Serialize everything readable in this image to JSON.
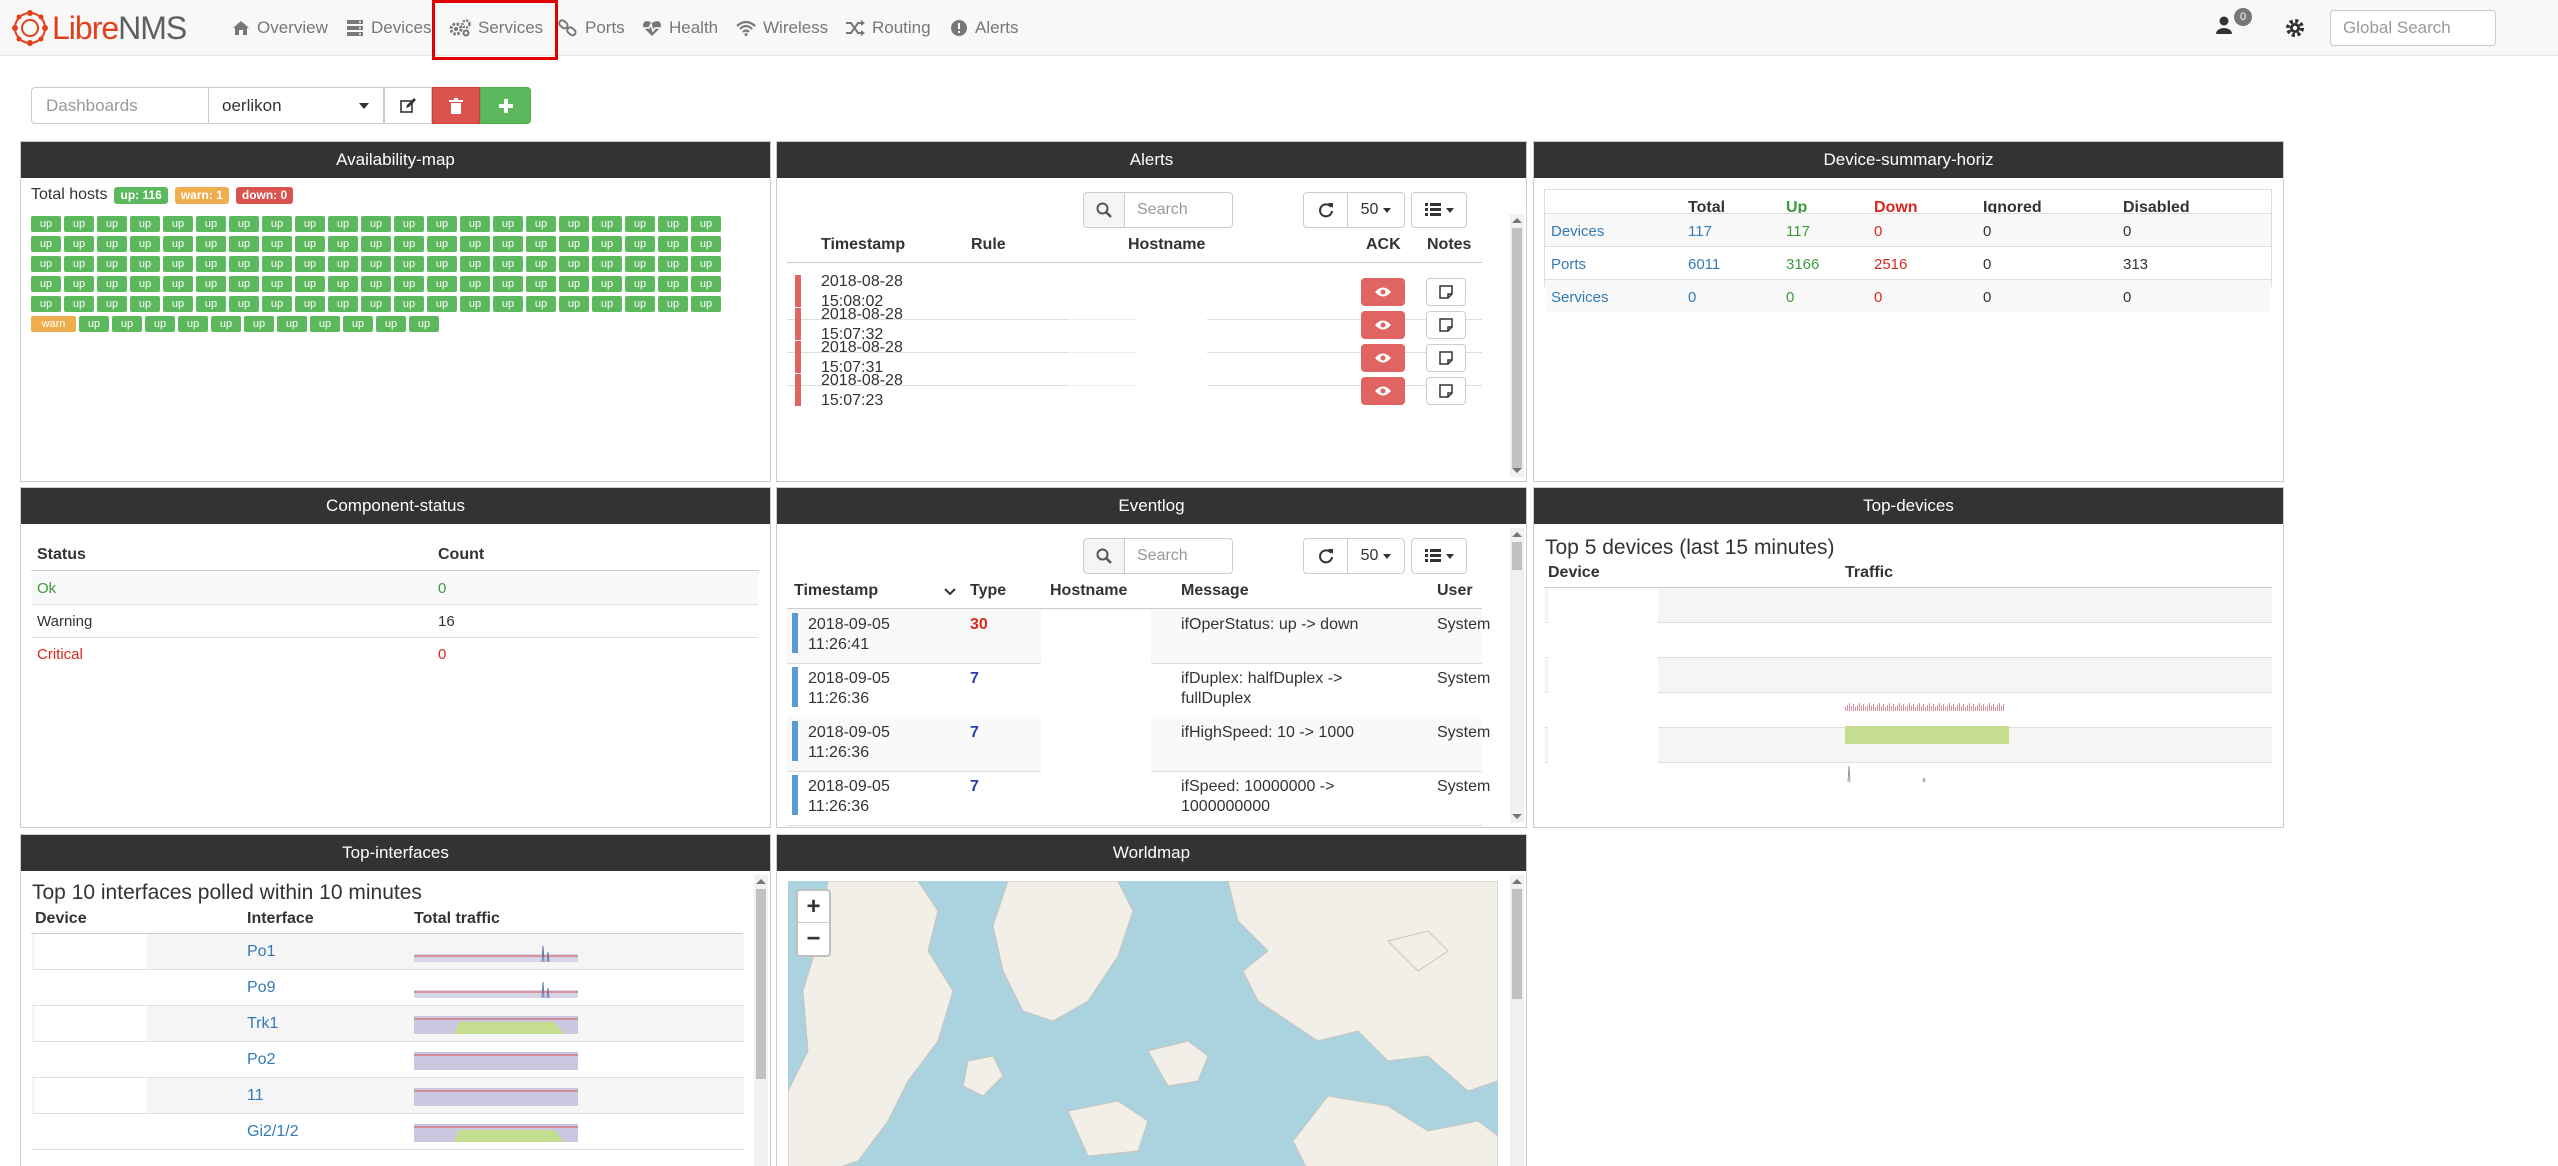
{
  "brand": {
    "libre": "Libre",
    "nms": "NMS"
  },
  "nav": {
    "overview": "Overview",
    "devices": "Devices",
    "services": "Services",
    "ports": "Ports",
    "health": "Health",
    "wireless": "Wireless",
    "routing": "Routing",
    "alerts": "Alerts",
    "notifications_count": "0",
    "search_placeholder": "Global Search"
  },
  "dashboard": {
    "label": "Dashboards",
    "selected": "oerlikon"
  },
  "availability": {
    "title": "Availability-map",
    "total_label": "Total hosts",
    "up_badge": "up: 116",
    "warn_badge": "warn: 1",
    "down_badge": "down: 0",
    "tile_up": "up",
    "tile_warn": "warn",
    "up_count": 116,
    "warn_count": 1
  },
  "alerts": {
    "title": "Alerts",
    "search_placeholder": "Search",
    "page_size": "50",
    "headers": [
      "Timestamp",
      "Rule",
      "Hostname",
      "ACK",
      "Notes"
    ],
    "rows": [
      {
        "date": "2018-08-28",
        "time": "15:08:02"
      },
      {
        "date": "2018-08-28",
        "time": "15:07:32"
      },
      {
        "date": "2018-08-28",
        "time": "15:07:31"
      },
      {
        "date": "2018-08-28",
        "time": "15:07:23"
      }
    ]
  },
  "device_summary": {
    "title": "Device-summary-horiz",
    "headers": [
      "Total",
      "Up",
      "Down",
      "Ignored",
      "Disabled"
    ],
    "rows": [
      {
        "label": "Devices",
        "total": "117",
        "up": "117",
        "down": "0",
        "ignored": "0",
        "disabled": "0"
      },
      {
        "label": "Ports",
        "total": "6011",
        "up": "3166",
        "down": "2516",
        "ignored": "0",
        "disabled": "313"
      },
      {
        "label": "Services",
        "total": "0",
        "up": "0",
        "down": "0",
        "ignored": "0",
        "disabled": "0"
      }
    ]
  },
  "component_status": {
    "title": "Component-status",
    "headers": [
      "Status",
      "Count"
    ],
    "rows": [
      {
        "status": "Ok",
        "count": "0"
      },
      {
        "status": "Warning",
        "count": "16"
      },
      {
        "status": "Critical",
        "count": "0"
      }
    ]
  },
  "eventlog": {
    "title": "Eventlog",
    "search_placeholder": "Search",
    "page_size": "50",
    "headers": [
      "Timestamp",
      "Type",
      "Hostname",
      "Message",
      "User"
    ],
    "rows": [
      {
        "date": "2018-09-05",
        "time": "11:26:41",
        "type": "30",
        "msg1": "ifOperStatus: up -> down",
        "msg2": "",
        "user": "System"
      },
      {
        "date": "2018-09-05",
        "time": "11:26:36",
        "type": "7",
        "msg1": "ifDuplex: halfDuplex ->",
        "msg2": "fullDuplex",
        "user": "System"
      },
      {
        "date": "2018-09-05",
        "time": "11:26:36",
        "type": "7",
        "msg1": "ifHighSpeed: 10 -> 1000",
        "msg2": "",
        "user": "System"
      },
      {
        "date": "2018-09-05",
        "time": "11:26:36",
        "type": "7",
        "msg1": "ifSpeed: 10000000 ->",
        "msg2": "1000000000",
        "user": "System"
      }
    ]
  },
  "top_devices": {
    "title": "Top-devices",
    "subtitle": "Top 5 devices (last 15 minutes)",
    "headers": [
      "Device",
      "Traffic"
    ]
  },
  "top_interfaces": {
    "title": "Top-interfaces",
    "subtitle": "Top 10 interfaces polled within 10 minutes",
    "headers": [
      "Device",
      "Interface",
      "Total traffic"
    ],
    "rows": [
      "Po1",
      "Po9",
      "Trk1",
      "Po2",
      "11",
      "Gi2/1/2"
    ]
  },
  "worldmap": {
    "title": "Worldmap",
    "zoom_in": "+",
    "zoom_out": "−"
  },
  "colors": {
    "navbar": "#f8f8f8",
    "widget_header": "#333333",
    "up": "#5cb85c",
    "warn": "#f0ad4e",
    "down": "#d9534f",
    "link": "#337ab7",
    "highlight": "#e00000"
  }
}
